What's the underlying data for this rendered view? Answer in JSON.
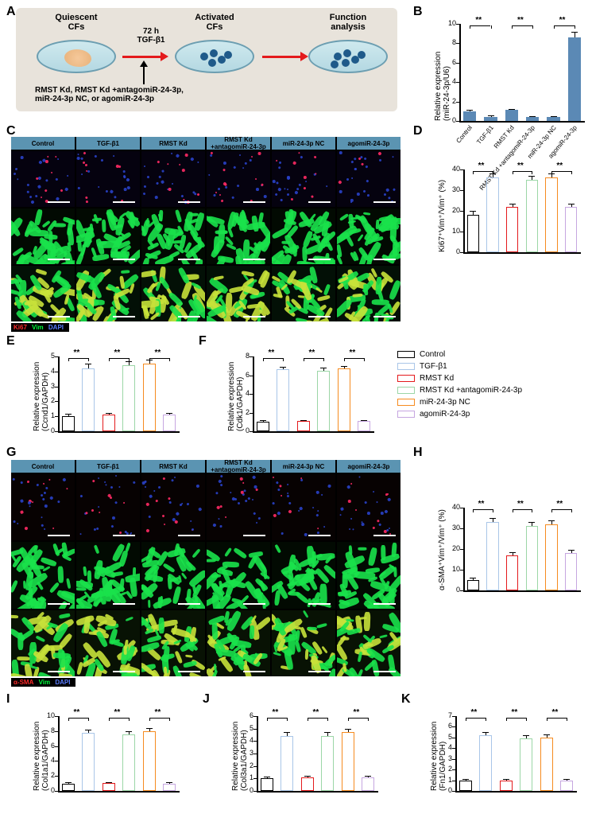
{
  "groups": [
    "Control",
    "TGF-β1",
    "RMST Kd",
    "RMST Kd +antagomiR-24-3p",
    "miR-24-3p NC",
    "agomiR-24-3p"
  ],
  "colors": {
    "control": "#000000",
    "tgf": "#a9c6e8",
    "rmstkd": "#e41a1c",
    "rmstkd_anta": "#9bd6a6",
    "nc": "#f68b1f",
    "agomir": "#c6a6e0",
    "header_bg": "#5b94b2",
    "panelA_bg": "#e8e3db",
    "dish_top": "#cfe9ee",
    "axis": "#000000",
    "sig_bar_fill": "#5b89b5"
  },
  "panelA": {
    "quiescent_label": "Quiescent\nCFs",
    "activated_label": "Activated\nCFs",
    "function_label": "Function\nanalysis",
    "tgf_label": "72 h\nTGF-β1",
    "injection_label": "RMST Kd, RMST Kd +antagomiR-24-3p,\nmiR-24-3p NC, or agomiR-24-3p"
  },
  "panelB": {
    "ylabel": "Relative expression\n(miR-24-3p/U6)",
    "ylim": [
      0,
      10
    ],
    "ytick_step": 2,
    "values": [
      1.0,
      0.45,
      1.15,
      0.4,
      0.4,
      8.6
    ],
    "errors": [
      0.12,
      0.1,
      0.12,
      0.08,
      0.08,
      0.6
    ],
    "bar_color": "#5b89b5",
    "sig_pairs": [
      [
        0,
        1
      ],
      [
        2,
        3
      ],
      [
        4,
        5
      ]
    ],
    "sig_label": "**",
    "xrot": -45
  },
  "panelD": {
    "ylabel": "Ki67⁺Vim⁺/Vim⁺ (%)",
    "ylim": [
      0,
      40
    ],
    "ytick_step": 10,
    "values": [
      18,
      36,
      22,
      35,
      36,
      22
    ],
    "errors": [
      2,
      2,
      1.5,
      2,
      2,
      1.5
    ],
    "sig_pairs": [
      [
        0,
        1
      ],
      [
        2,
        3
      ],
      [
        4,
        5
      ]
    ],
    "sig_label": "**"
  },
  "panelE": {
    "ylabel": "Relative expression\n(Ccnd1/GAPDH)",
    "ylim": [
      0,
      5
    ],
    "ytick_step": 1,
    "values": [
      1.0,
      4.2,
      1.1,
      4.4,
      4.5,
      1.1
    ],
    "errors": [
      0.15,
      0.3,
      0.12,
      0.3,
      0.3,
      0.12
    ],
    "sig_pairs": [
      [
        0,
        1
      ],
      [
        2,
        3
      ],
      [
        4,
        5
      ]
    ],
    "sig_label": "**"
  },
  "panelF": {
    "ylabel": "Relative expression\n(Cdk1/GAPDH)",
    "ylim": [
      0,
      8
    ],
    "ytick_step": 2,
    "values": [
      1.0,
      6.6,
      1.1,
      6.5,
      6.7,
      1.1
    ],
    "errors": [
      0.15,
      0.3,
      0.12,
      0.3,
      0.3,
      0.12
    ],
    "sig_pairs": [
      [
        0,
        1
      ],
      [
        2,
        3
      ],
      [
        4,
        5
      ]
    ],
    "sig_label": "**"
  },
  "panelH": {
    "ylabel": "α-SMA⁺Vim⁺/Vim⁺ (%)",
    "ylim": [
      0,
      40
    ],
    "ytick_step": 10,
    "values": [
      5,
      33,
      17,
      31,
      32,
      18
    ],
    "errors": [
      1,
      2,
      1.5,
      2,
      2,
      1.5
    ],
    "sig_pairs": [
      [
        0,
        1
      ],
      [
        2,
        3
      ],
      [
        4,
        5
      ]
    ],
    "sig_label": "**"
  },
  "panelI": {
    "ylabel": "Relative expression\n(Col1a1/GAPDH)",
    "ylim": [
      0,
      10
    ],
    "ytick_step": 2,
    "values": [
      1.0,
      7.8,
      1.1,
      7.6,
      8.0,
      1.0
    ],
    "errors": [
      0.12,
      0.4,
      0.12,
      0.4,
      0.4,
      0.12
    ],
    "sig_pairs": [
      [
        0,
        1
      ],
      [
        2,
        3
      ],
      [
        4,
        5
      ]
    ],
    "sig_label": "**"
  },
  "panelJ": {
    "ylabel": "Relative expression\n(Col3a1/GAPDH)",
    "ylim": [
      0,
      6
    ],
    "ytick_step": 1,
    "values": [
      1.0,
      4.4,
      1.1,
      4.4,
      4.7,
      1.1
    ],
    "errors": [
      0.12,
      0.3,
      0.12,
      0.3,
      0.3,
      0.12
    ],
    "sig_pairs": [
      [
        0,
        1
      ],
      [
        2,
        3
      ],
      [
        4,
        5
      ]
    ],
    "sig_label": "**"
  },
  "panelK": {
    "ylabel": "Relative expression\n(Fn1/GAPDH)",
    "ylim": [
      0,
      7
    ],
    "ytick_step": 1,
    "values": [
      1.0,
      5.2,
      1.0,
      4.9,
      5.0,
      1.0
    ],
    "errors": [
      0.12,
      0.3,
      0.12,
      0.3,
      0.3,
      0.12
    ],
    "sig_pairs": [
      [
        0,
        1
      ],
      [
        2,
        3
      ],
      [
        4,
        5
      ]
    ],
    "sig_label": "**"
  },
  "micro_legend_C": {
    "labels": [
      "Ki67",
      "Vim",
      "DAPI"
    ],
    "colors": [
      "#ff2a2a",
      "#00ff3c",
      "#2a4dff"
    ]
  },
  "micro_legend_G": {
    "labels": [
      "α-SMA",
      "Vim",
      "DAPI"
    ],
    "colors": [
      "#ff2a2a",
      "#00ff3c",
      "#2a4dff"
    ]
  },
  "shared_legend": [
    {
      "label": "Control",
      "color": "#000000"
    },
    {
      "label": "TGF-β1",
      "color": "#a9c6e8"
    },
    {
      "label": "RMST Kd",
      "color": "#e41a1c"
    },
    {
      "label": "RMST Kd +antagomiR-24-3p",
      "color": "#9bd6a6"
    },
    {
      "label": "miR-24-3p NC",
      "color": "#f68b1f"
    },
    {
      "label": "agomiR-24-3p",
      "color": "#c6a6e0"
    }
  ],
  "letters": {
    "A": "A",
    "B": "B",
    "C": "C",
    "D": "D",
    "E": "E",
    "F": "F",
    "G": "G",
    "H": "H",
    "I": "I",
    "J": "J",
    "K": "K"
  }
}
